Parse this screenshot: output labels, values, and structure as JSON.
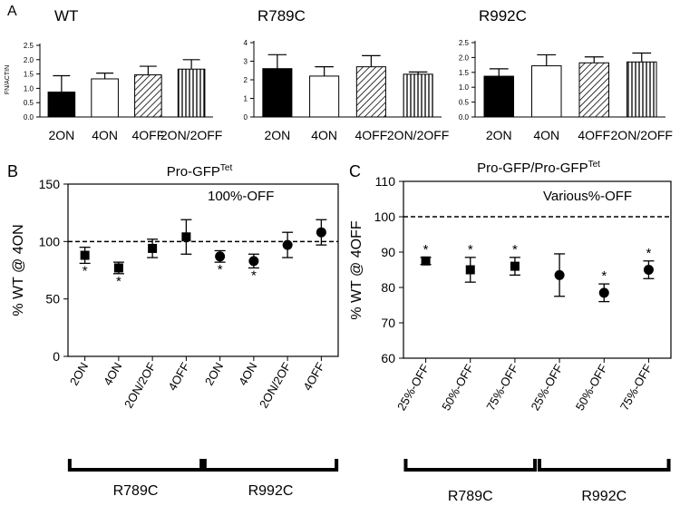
{
  "figure": {
    "panel_a_label": "A",
    "panel_b_label": "B",
    "panel_c_label": "C"
  },
  "chart_data": [
    {
      "id": "a1",
      "type": "bar",
      "title": "WT",
      "ylabel": "FN/ACTIN",
      "ylim": [
        0,
        2.5
      ],
      "yticks": [
        "0.0",
        "0.5",
        "1.0",
        "1.5",
        "2.0",
        "2.5"
      ],
      "categories": [
        "2ON",
        "4ON",
        "4OFF",
        "2ON/2OFF"
      ],
      "values": [
        0.87,
        1.33,
        1.47,
        1.67
      ],
      "errors": [
        0.57,
        0.2,
        0.3,
        0.33
      ],
      "fills": [
        "black",
        "white",
        "diagonal",
        "vertical"
      ]
    },
    {
      "id": "a2",
      "type": "bar",
      "title": "R789C",
      "ylabel": "",
      "ylim": [
        0,
        4
      ],
      "yticks": [
        "0",
        "1",
        "2",
        "3",
        "4"
      ],
      "categories": [
        "2ON",
        "4ON",
        "4OFF",
        "2ON/2OFF"
      ],
      "values": [
        2.6,
        2.2,
        2.7,
        2.3
      ],
      "errors": [
        0.75,
        0.5,
        0.6,
        0.12
      ],
      "fills": [
        "black",
        "white",
        "diagonal",
        "vertical"
      ]
    },
    {
      "id": "a3",
      "type": "bar",
      "title": "R992C",
      "ylabel": "",
      "ylim": [
        0,
        2.5
      ],
      "yticks": [
        "0.0",
        "0.5",
        "1.0",
        "1.5",
        "2.0",
        "2.5"
      ],
      "categories": [
        "2ON",
        "4ON",
        "4OFF",
        "2ON/2OFF"
      ],
      "values": [
        1.37,
        1.72,
        1.82,
        1.85
      ],
      "errors": [
        0.25,
        0.37,
        0.2,
        0.3
      ],
      "fills": [
        "black",
        "white",
        "diagonal",
        "vertical"
      ]
    },
    {
      "id": "b",
      "type": "scatter",
      "title": "Pro-GFP",
      "title_sup": "Tet",
      "annotation": "100%-OFF",
      "ylabel": "% WT @ 4ON",
      "ylim": [
        0,
        150
      ],
      "yticks": [
        "0",
        "50",
        "100",
        "150"
      ],
      "reference_line": 100,
      "categories": [
        "2ON",
        "4ON",
        "2ON/2OF",
        "4OFF",
        "2ON",
        "4ON",
        "2ON/2OF",
        "4OFF"
      ],
      "values": [
        88,
        77,
        94,
        104,
        87,
        83,
        97,
        108
      ],
      "errors": [
        7,
        5,
        8,
        15,
        5,
        6,
        11,
        11
      ],
      "markers": [
        "square",
        "square",
        "square",
        "square",
        "circle",
        "circle",
        "circle",
        "circle"
      ],
      "significant": [
        true,
        true,
        false,
        false,
        true,
        true,
        false,
        false
      ],
      "groups": [
        {
          "label": "R789C",
          "from": 0,
          "to": 3
        },
        {
          "label": "R992C",
          "from": 4,
          "to": 7
        }
      ]
    },
    {
      "id": "c",
      "type": "scatter",
      "title": "Pro-GFP/Pro-GFP",
      "title_sup": "Tet",
      "annotation": "Various%-OFF",
      "ylabel": "% WT @ 4OFF",
      "ylim": [
        60,
        110
      ],
      "yticks": [
        "60",
        "70",
        "80",
        "90",
        "100",
        "110"
      ],
      "reference_line": 100,
      "categories": [
        "25%-OFF",
        "50%-OFF",
        "75%-OFF",
        "25%-OFF",
        "50%-OFF",
        "75%-OFF"
      ],
      "values": [
        87.5,
        85,
        86,
        83.5,
        78.5,
        85
      ],
      "errors": [
        1,
        3.5,
        2.5,
        6,
        2.5,
        2.5
      ],
      "markers": [
        "square",
        "square",
        "square",
        "circle",
        "circle",
        "circle"
      ],
      "significant": [
        true,
        true,
        true,
        false,
        true,
        true
      ],
      "groups": [
        {
          "label": "R789C",
          "from": 0,
          "to": 2
        },
        {
          "label": "R992C",
          "from": 3,
          "to": 5
        }
      ]
    }
  ]
}
